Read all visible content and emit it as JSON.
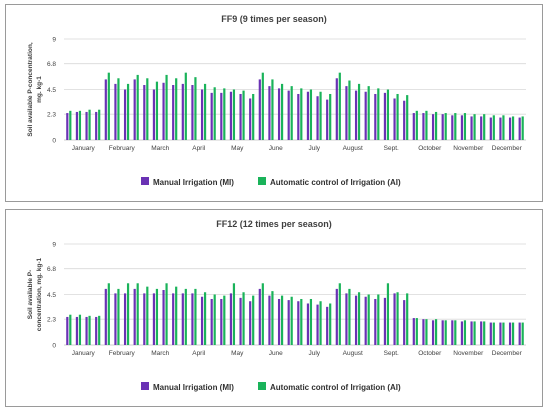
{
  "chart_data": [
    {
      "type": "bar",
      "title": "FF9 (9 times per season)",
      "ylabel_lines": [
        "Soil available P-concentration,",
        "mg. kg-1"
      ],
      "yticks": [
        "0",
        "2.3",
        "4.5",
        "6.8",
        "9"
      ],
      "ylim": [
        0,
        9
      ],
      "grid": true,
      "months": [
        "January",
        "February",
        "March",
        "April",
        "May",
        "June",
        "July",
        "August",
        "Sept.",
        "October",
        "November",
        "December"
      ],
      "series": [
        {
          "name": "Manual Irrigation (MI)",
          "color": "#6a32b4",
          "values": [
            2.4,
            2.5,
            2.5,
            2.5,
            5.4,
            5.0,
            4.5,
            5.4,
            4.9,
            4.5,
            5.1,
            4.9,
            5.0,
            4.9,
            4.5,
            4.2,
            4.2,
            4.3,
            4.1,
            3.7,
            5.4,
            4.8,
            4.6,
            4.4,
            4.1,
            4.3,
            3.9,
            3.6,
            5.5,
            4.8,
            4.4,
            4.3,
            4.1,
            4.2,
            3.7,
            3.5,
            2.4,
            2.4,
            2.3,
            2.3,
            2.2,
            2.2,
            2.1,
            2.1,
            2.0,
            2.0,
            2.0,
            2.0
          ]
        },
        {
          "name": "Automatic control of Irrigation (AI)",
          "color": "#1ab35a",
          "values": [
            2.6,
            2.6,
            2.7,
            2.7,
            6.0,
            5.5,
            5.0,
            5.8,
            5.5,
            5.2,
            5.8,
            5.5,
            6.0,
            5.6,
            5.0,
            4.7,
            4.6,
            4.5,
            4.4,
            4.1,
            6.0,
            5.4,
            5.0,
            4.8,
            4.6,
            4.5,
            4.3,
            4.1,
            6.0,
            5.3,
            5.0,
            4.8,
            4.6,
            4.5,
            4.1,
            4.0,
            2.6,
            2.6,
            2.5,
            2.4,
            2.4,
            2.4,
            2.3,
            2.3,
            2.2,
            2.2,
            2.1,
            2.1
          ]
        }
      ]
    },
    {
      "type": "bar",
      "title": "FF12 (12 times per season)",
      "ylabel_lines": [
        "Soil available P-",
        "concentration, mg. kg-1"
      ],
      "yticks": [
        "0",
        "2.3",
        "4.5",
        "6.8",
        "9"
      ],
      "ylim": [
        0,
        9
      ],
      "grid": true,
      "months": [
        "January",
        "February",
        "March",
        "April",
        "May",
        "June",
        "July",
        "August",
        "Sept.",
        "October",
        "November",
        "December"
      ],
      "series": [
        {
          "name": "Manual Irrigation (MI)",
          "color": "#6a32b4",
          "values": [
            2.5,
            2.5,
            2.5,
            2.5,
            5.0,
            4.6,
            4.6,
            5.0,
            4.6,
            4.6,
            4.9,
            4.6,
            4.6,
            4.6,
            4.3,
            4.1,
            4.1,
            4.6,
            4.2,
            3.9,
            5.0,
            4.4,
            4.1,
            4.0,
            3.9,
            3.7,
            3.6,
            3.4,
            5.0,
            4.6,
            4.4,
            4.3,
            4.1,
            4.2,
            4.6,
            4.0,
            2.4,
            2.3,
            2.2,
            2.2,
            2.2,
            2.1,
            2.1,
            2.1,
            2.0,
            2.0,
            2.0,
            2.0
          ]
        },
        {
          "name": "Automatic control of Irrigation (AI)",
          "color": "#1ab35a",
          "values": [
            2.7,
            2.7,
            2.6,
            2.6,
            5.5,
            5.0,
            5.5,
            5.5,
            5.2,
            5.0,
            5.5,
            5.2,
            5.0,
            5.0,
            4.7,
            4.5,
            4.4,
            5.5,
            4.7,
            4.4,
            5.5,
            4.8,
            4.4,
            4.3,
            4.1,
            4.1,
            3.9,
            3.7,
            5.5,
            5.0,
            4.7,
            4.5,
            4.5,
            5.5,
            4.7,
            4.6,
            2.4,
            2.3,
            2.3,
            2.2,
            2.2,
            2.2,
            2.1,
            2.1,
            2.0,
            2.0,
            2.0,
            2.0
          ]
        }
      ]
    }
  ]
}
